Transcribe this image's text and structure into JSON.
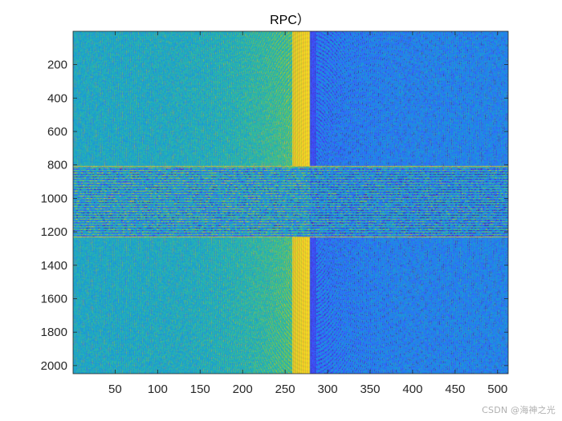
{
  "chart_data": {
    "type": "heatmap",
    "title": "RPC）",
    "xlabel": "",
    "ylabel": "",
    "xlim": [
      0.5,
      512.5
    ],
    "ylim": [
      0.5,
      2048.5
    ],
    "y_reversed": true,
    "x_ticks": [
      50,
      100,
      150,
      200,
      250,
      300,
      350,
      400,
      450,
      500
    ],
    "y_ticks": [
      200,
      400,
      600,
      800,
      1000,
      1200,
      1400,
      1600,
      1800,
      2000
    ],
    "colormap": "parula",
    "colormap_stops": [
      "#3e26a8",
      "#4743f8",
      "#2c72fd",
      "#1a8fdf",
      "#1ba8c8",
      "#2eb7a3",
      "#5ac468",
      "#a6c232",
      "#eab82f",
      "#f6e620"
    ],
    "grid": false,
    "structure": {
      "columns": 512,
      "rows": 2048,
      "discontinuity_column": 279,
      "central_band_rows": [
        808,
        1234
      ]
    }
  },
  "watermark": "CSDN @海神之光"
}
